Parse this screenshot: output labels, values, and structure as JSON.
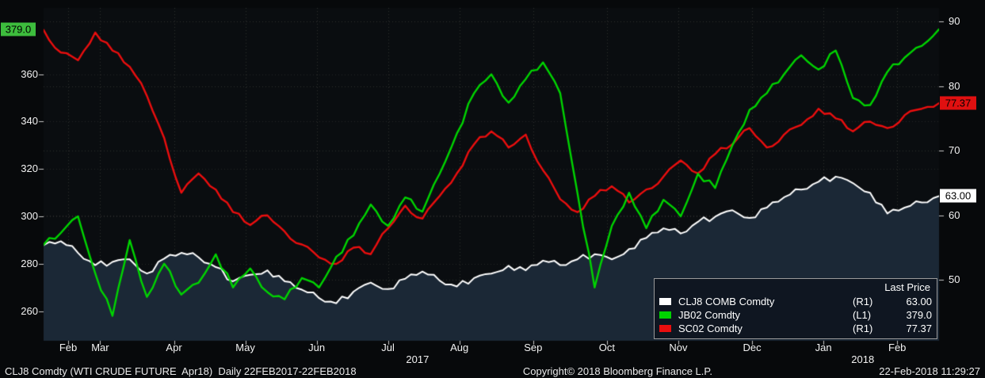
{
  "chart_data": {
    "type": "line",
    "title": "",
    "period": "Daily 22FEB2017-22FEB2018",
    "colors": {
      "background": "#07090b",
      "plot_bg": "#0a0d10",
      "grid": "#2f2f2f",
      "axis_text": "#f2f2f2"
    },
    "x": {
      "unit": "days-from-22FEB2017",
      "min": 0,
      "max": 364,
      "month_labels": [
        {
          "label": "Feb",
          "day": 10
        },
        {
          "label": "Mar",
          "day": 23
        },
        {
          "label": "Apr",
          "day": 53
        },
        {
          "label": "May",
          "day": 82
        },
        {
          "label": "Jun",
          "day": 111
        },
        {
          "label": "Jul",
          "day": 140
        },
        {
          "label": "Aug",
          "day": 169
        },
        {
          "label": "Sep",
          "day": 199
        },
        {
          "label": "Oct",
          "day": 229
        },
        {
          "label": "Nov",
          "day": 258
        },
        {
          "label": "Dec",
          "day": 288
        },
        {
          "label": "Jan",
          "day": 317
        },
        {
          "label": "Feb",
          "day": 347
        }
      ],
      "year_labels": [
        {
          "label": "2017",
          "day": 152
        },
        {
          "label": "2018",
          "day": 333
        }
      ]
    },
    "left_axis": {
      "range": [
        247.5,
        388
      ],
      "ticks": [
        260,
        280,
        300,
        320,
        340,
        360
      ],
      "badge": {
        "label": "379.0",
        "value": 379.0,
        "bg": "#3dbd3d",
        "text": "#000000"
      }
    },
    "right_axis": {
      "range": [
        40.6,
        92.1
      ],
      "ticks": [
        50,
        60,
        70,
        80,
        90
      ],
      "badges": [
        {
          "label": "77.37",
          "value": 77.37,
          "bg": "#e01010",
          "text": "#000000"
        },
        {
          "label": "63.00",
          "value": 63.0,
          "bg": "#ffffff",
          "text": "#000000"
        }
      ]
    },
    "sample_days": [
      0,
      7,
      14,
      21,
      28,
      35,
      42,
      49,
      56,
      63,
      70,
      77,
      84,
      91,
      98,
      105,
      112,
      119,
      126,
      133,
      140,
      147,
      154,
      161,
      168,
      175,
      182,
      189,
      196,
      203,
      210,
      217,
      224,
      231,
      238,
      245,
      252,
      259,
      266,
      273,
      280,
      287,
      294,
      301,
      308,
      315,
      322,
      329,
      336,
      343,
      350,
      357,
      364
    ],
    "series": [
      {
        "name": "CLJ8 COMB Comdty",
        "axis_label": "(R1)",
        "last_price": "63.00",
        "color": "#ffffff",
        "fill": "#1b2836",
        "axis": "right",
        "values": [
          55.4,
          56.0,
          54.2,
          52.3,
          52.8,
          53.2,
          51.0,
          53.3,
          54.2,
          53.5,
          52.0,
          49.8,
          50.8,
          51.5,
          49.8,
          48.5,
          47.2,
          46.4,
          48.2,
          49.6,
          48.6,
          50.2,
          51.3,
          49.9,
          49.0,
          50.3,
          51.0,
          52.2,
          51.5,
          53.0,
          52.3,
          53.2,
          54.0,
          53.2,
          54.8,
          56.5,
          58.0,
          57.2,
          59.0,
          59.8,
          60.8,
          59.6,
          61.2,
          62.8,
          64.0,
          65.2,
          66.0,
          65.0,
          63.5,
          60.3,
          61.2,
          62.0,
          63.0
        ]
      },
      {
        "name": "JB02 Comdty",
        "axis_label": "(L1)",
        "last_price": "379.0",
        "color": "#00d400",
        "axis": "left",
        "values": [
          288,
          293,
          300,
          276,
          258,
          290,
          266,
          280,
          267,
          272,
          284,
          270,
          278,
          268,
          265,
          274,
          270,
          283,
          292,
          305,
          296,
          308,
          302,
          318,
          335,
          352,
          360,
          348,
          358,
          365,
          352,
          310,
          270,
          296,
          310,
          295,
          307,
          300,
          318,
          312,
          330,
          345,
          352,
          360,
          368,
          362,
          370,
          350,
          347,
          361,
          367,
          372,
          379
        ]
      },
      {
        "name": "SC02 Comdty",
        "axis_label": "(R1)",
        "last_price": "77.37",
        "color": "#ea0e0e",
        "axis": "right",
        "values": [
          88.7,
          85.2,
          84.0,
          88.3,
          85.5,
          83.0,
          78.5,
          72.0,
          63.5,
          66.5,
          64.0,
          60.5,
          58.5,
          60.0,
          57.5,
          55.5,
          53.5,
          52.5,
          55.0,
          54.0,
          58.0,
          61.5,
          59.5,
          63.0,
          66.5,
          71.0,
          73.0,
          70.5,
          72.5,
          67.0,
          62.5,
          60.5,
          63.0,
          64.5,
          62.0,
          64.0,
          66.0,
          68.5,
          66.5,
          69.5,
          71.0,
          73.5,
          70.5,
          72.5,
          74.0,
          76.5,
          75.0,
          73.0,
          74.5,
          73.5,
          75.5,
          76.5,
          77.37
        ]
      }
    ]
  },
  "legend": {
    "title": "Last Price",
    "rows": [
      {
        "name": "CLJ8 COMB Comdty",
        "axis": "(R1)",
        "value": "63.00",
        "color": "#ffffff"
      },
      {
        "name": "JB02 Comdty",
        "axis": "(L1)",
        "value": "379.0",
        "color": "#00d400"
      },
      {
        "name": "SC02 Comdty",
        "axis": "(R1)",
        "value": "77.37",
        "color": "#ea0e0e"
      }
    ]
  },
  "footer": {
    "left": "CLJ8 Comdty (WTI CRUDE FUTURE  Apr18)  Daily 22FEB2017-22FEB2018",
    "center": "Copyright© 2018 Bloomberg Finance L.P.",
    "right": "22-Feb-2018 11:29:27"
  }
}
